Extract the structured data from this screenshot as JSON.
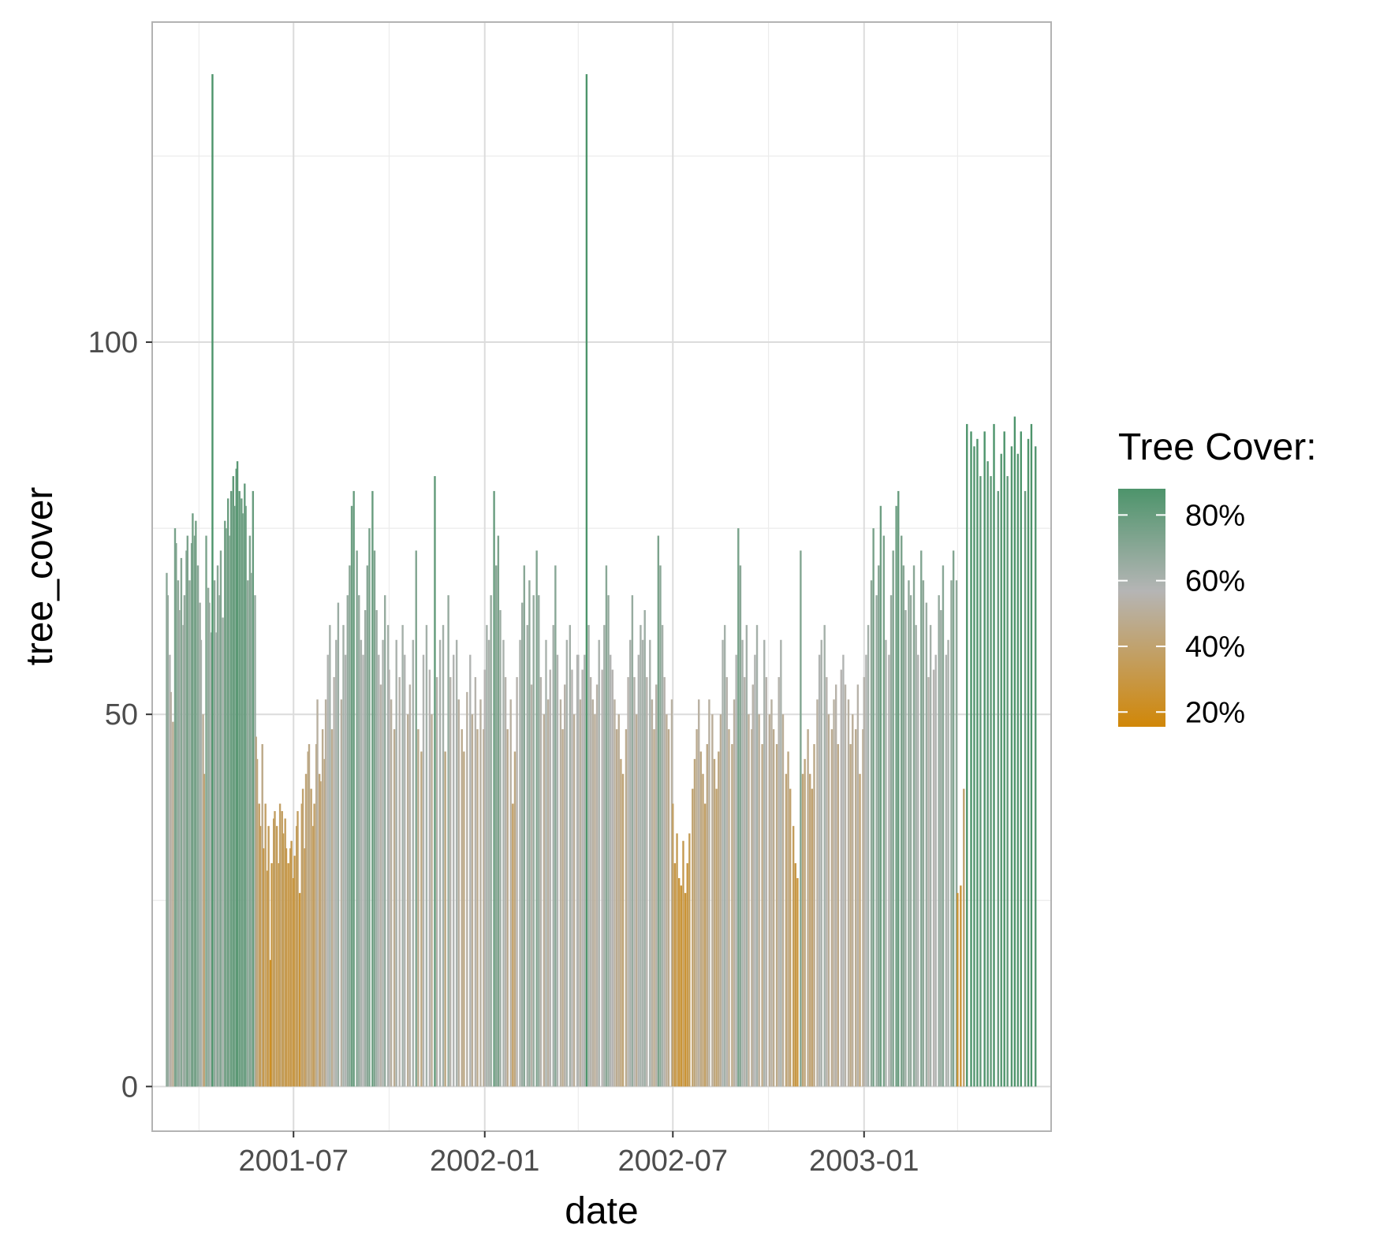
{
  "chart_data": {
    "type": "bar",
    "xlabel": "date",
    "ylabel": "tree_cover",
    "x_range": [
      "2001-02-15",
      "2003-06-30"
    ],
    "ylim": [
      -6,
      143
    ],
    "y_ticks": [
      0,
      50,
      100
    ],
    "y_minor_ticks": [
      25,
      75,
      125
    ],
    "x_ticks": [
      {
        "date": "2001-07-01",
        "label": "2001-07"
      },
      {
        "date": "2002-01-01",
        "label": "2002-01"
      },
      {
        "date": "2002-07-01",
        "label": "2002-07"
      },
      {
        "date": "2003-01-01",
        "label": "2003-01"
      }
    ],
    "x_minor_ticks": [
      "2001-04-01",
      "2001-10-01",
      "2002-04-01",
      "2002-10-01",
      "2003-04-01"
    ],
    "grid": true,
    "legend": {
      "title": "Tree Cover:",
      "position": "right",
      "labels": [
        "80%",
        "60%",
        "40%",
        "20%"
      ],
      "values": [
        80,
        60,
        40,
        20
      ],
      "range": [
        15.5,
        88
      ]
    },
    "colors": {
      "low": "#d18708",
      "mid": "#b5b5b5",
      "high": "#4d946b"
    },
    "series": [
      {
        "start": "2001-03-01",
        "end": "2001-05-25",
        "values": [
          69,
          66,
          58,
          53,
          49,
          75,
          73,
          68,
          64,
          71,
          62,
          66,
          72,
          74,
          68,
          73,
          77,
          74,
          76,
          70,
          65,
          60,
          50,
          42,
          74,
          67,
          65,
          61,
          136,
          68,
          61,
          70,
          66,
          72,
          63,
          76,
          75,
          79,
          74,
          80,
          82,
          78,
          83,
          84,
          80,
          79,
          77,
          81,
          78,
          68,
          74,
          69,
          80,
          66
        ]
      },
      {
        "start": "2001-05-26",
        "end": "2001-07-31",
        "values": [
          47,
          44,
          38,
          35,
          46,
          32,
          38,
          29,
          35,
          17,
          30,
          36,
          37,
          35,
          30,
          38,
          37,
          34,
          36,
          32,
          30,
          32,
          33,
          28,
          31,
          35,
          37,
          26,
          38,
          40,
          32,
          42,
          45,
          46,
          40,
          35,
          38,
          46,
          52,
          42,
          41,
          48,
          44
        ]
      },
      {
        "start": "2001-08-01",
        "end": "2001-09-30",
        "values": [
          52,
          58,
          62,
          48,
          55,
          60,
          65,
          52,
          62,
          58,
          66,
          70,
          78,
          80,
          72,
          66,
          60,
          58,
          64,
          70,
          75,
          80,
          72,
          64,
          58,
          54,
          60,
          66,
          62
        ]
      },
      {
        "start": "2001-10-01",
        "end": "2001-12-31",
        "values": [
          56,
          52,
          48,
          60,
          55,
          62,
          58,
          50,
          54,
          60,
          72,
          48,
          45,
          58,
          62,
          56,
          50,
          82,
          55,
          60,
          62,
          45,
          66,
          55,
          58,
          60,
          52,
          48,
          45,
          53,
          58,
          50,
          55,
          48,
          52,
          48
        ]
      },
      {
        "start": "2002-01-01",
        "end": "2002-03-31",
        "values": [
          56,
          62,
          60,
          66,
          80,
          70,
          74,
          64,
          60,
          55,
          48,
          52,
          38,
          45,
          55,
          60,
          65,
          70,
          62,
          68,
          54,
          66,
          72,
          66,
          55,
          50,
          60,
          52,
          56,
          62,
          70,
          58,
          52,
          48,
          54,
          60,
          62,
          56,
          50,
          58
        ]
      },
      {
        "start": "2002-04-01",
        "end": "2002-06-30",
        "values": [
          58,
          52,
          56,
          58,
          136,
          62,
          55,
          52,
          50,
          54,
          60,
          56,
          62,
          70,
          66,
          58,
          56,
          52,
          48,
          50,
          44,
          42,
          48,
          55,
          60,
          66,
          55,
          50,
          58,
          62,
          60,
          64,
          55,
          60,
          52,
          48,
          54,
          74,
          70,
          62,
          55,
          50,
          48,
          52
        ]
      },
      {
        "start": "2002-07-01",
        "end": "2002-09-15",
        "values": [
          38,
          30,
          34,
          28,
          27,
          33,
          26,
          30,
          34,
          40,
          44,
          48,
          52,
          45,
          42,
          38,
          46,
          52,
          50,
          44,
          40,
          45,
          50,
          60,
          62,
          55,
          48,
          46,
          52,
          58,
          75,
          70,
          60,
          55,
          62,
          50,
          48
        ]
      },
      {
        "start": "2002-09-16",
        "end": "2002-12-31",
        "values": [
          54,
          58,
          62,
          50,
          46,
          60,
          55,
          50,
          52,
          48,
          46,
          55,
          60,
          50,
          42,
          45,
          40,
          35,
          30,
          28,
          72,
          42,
          44,
          48,
          42,
          40,
          46,
          52,
          58,
          60,
          62,
          55,
          50,
          48,
          52,
          54,
          46,
          56,
          58,
          54,
          52,
          46,
          50,
          48,
          54,
          42,
          48
        ]
      },
      {
        "start": "2003-01-01",
        "end": "2003-03-31",
        "values": [
          55,
          58,
          62,
          68,
          75,
          66,
          70,
          78,
          74,
          60,
          58,
          66,
          72,
          78,
          80,
          74,
          70,
          64,
          68,
          66,
          70,
          62,
          58,
          72,
          68,
          65,
          55,
          62,
          56,
          58,
          66,
          64,
          70,
          58,
          60,
          68,
          72,
          68
        ]
      },
      {
        "start": "2003-04-01",
        "end": "2003-06-15",
        "values": [
          26,
          27,
          40,
          89,
          88,
          86,
          87,
          82,
          88,
          84,
          82,
          89,
          80,
          85,
          88,
          82,
          86,
          90,
          85,
          88,
          80,
          87,
          89,
          86
        ]
      }
    ]
  }
}
